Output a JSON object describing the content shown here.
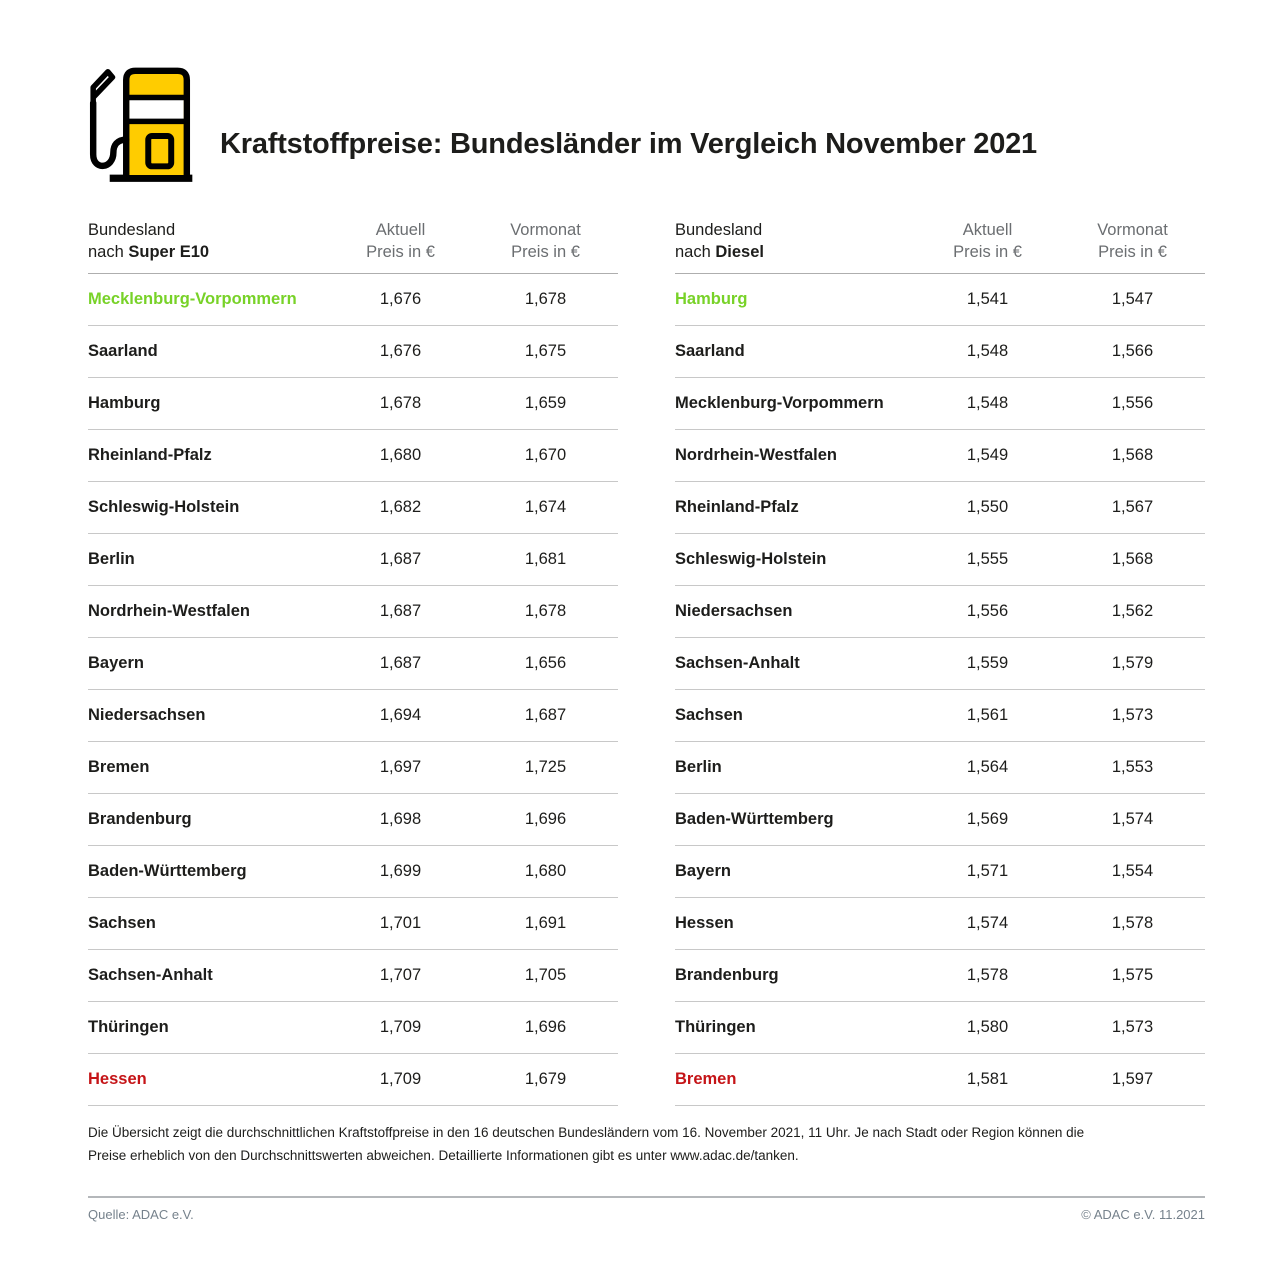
{
  "header": {
    "title": "Kraftstoffpreise: Bundesländer im Vergleich November 2021",
    "icon": "fuel-pump-icon"
  },
  "colors": {
    "brand_yellow": "#FFCC00",
    "cheapest_green": "#78D228",
    "most_expensive_red": "#C51417",
    "column_header_gray": "#6B6E71",
    "text_dark": "#1D1D1B",
    "row_divider": "#C8C8C8",
    "footer_gray": "#76828C"
  },
  "tables": [
    {
      "id": "super-e10",
      "header": {
        "col1_line1": "Bundesland",
        "col1_prefix": "nach ",
        "col1_bold": "Super E10",
        "col2_line1": "Aktuell",
        "col2_line2": "Preis in €",
        "col3_line1": "Vormonat",
        "col3_line2": "Preis in €"
      },
      "rows": [
        {
          "state": "Mecklenburg-Vorpommern",
          "current": "1,676",
          "previous": "1,678",
          "highlight": "green"
        },
        {
          "state": "Saarland",
          "current": "1,676",
          "previous": "1,675"
        },
        {
          "state": "Hamburg",
          "current": "1,678",
          "previous": "1,659"
        },
        {
          "state": "Rheinland-Pfalz",
          "current": "1,680",
          "previous": "1,670"
        },
        {
          "state": "Schleswig-Holstein",
          "current": "1,682",
          "previous": "1,674"
        },
        {
          "state": "Berlin",
          "current": "1,687",
          "previous": "1,681"
        },
        {
          "state": "Nordrhein-Westfalen",
          "current": "1,687",
          "previous": "1,678"
        },
        {
          "state": "Bayern",
          "current": "1,687",
          "previous": "1,656"
        },
        {
          "state": "Niedersachsen",
          "current": "1,694",
          "previous": "1,687"
        },
        {
          "state": "Bremen",
          "current": "1,697",
          "previous": "1,725"
        },
        {
          "state": "Brandenburg",
          "current": "1,698",
          "previous": "1,696"
        },
        {
          "state": "Baden-Württemberg",
          "current": "1,699",
          "previous": "1,680"
        },
        {
          "state": "Sachsen",
          "current": "1,701",
          "previous": "1,691"
        },
        {
          "state": "Sachsen-Anhalt",
          "current": "1,707",
          "previous": "1,705"
        },
        {
          "state": "Thüringen",
          "current": "1,709",
          "previous": "1,696"
        },
        {
          "state": "Hessen",
          "current": "1,709",
          "previous": "1,679",
          "highlight": "red"
        }
      ]
    },
    {
      "id": "diesel",
      "header": {
        "col1_line1": "Bundesland",
        "col1_prefix": "nach ",
        "col1_bold": "Diesel",
        "col2_line1": "Aktuell",
        "col2_line2": "Preis in €",
        "col3_line1": "Vormonat",
        "col3_line2": "Preis in €"
      },
      "rows": [
        {
          "state": "Hamburg",
          "current": "1,541",
          "previous": "1,547",
          "highlight": "green"
        },
        {
          "state": "Saarland",
          "current": "1,548",
          "previous": "1,566"
        },
        {
          "state": "Mecklenburg-Vorpommern",
          "current": "1,548",
          "previous": "1,556"
        },
        {
          "state": "Nordrhein-Westfalen",
          "current": "1,549",
          "previous": "1,568"
        },
        {
          "state": "Rheinland-Pfalz",
          "current": "1,550",
          "previous": "1,567"
        },
        {
          "state": "Schleswig-Holstein",
          "current": "1,555",
          "previous": "1,568"
        },
        {
          "state": "Niedersachsen",
          "current": "1,556",
          "previous": "1,562"
        },
        {
          "state": "Sachsen-Anhalt",
          "current": "1,559",
          "previous": "1,579"
        },
        {
          "state": "Sachsen",
          "current": "1,561",
          "previous": "1,573"
        },
        {
          "state": "Berlin",
          "current": "1,564",
          "previous": "1,553"
        },
        {
          "state": "Baden-Württemberg",
          "current": "1,569",
          "previous": "1,574"
        },
        {
          "state": "Bayern",
          "current": "1,571",
          "previous": "1,554"
        },
        {
          "state": "Hessen",
          "current": "1,574",
          "previous": "1,578"
        },
        {
          "state": "Brandenburg",
          "current": "1,578",
          "previous": "1,575"
        },
        {
          "state": "Thüringen",
          "current": "1,580",
          "previous": "1,573"
        },
        {
          "state": "Bremen",
          "current": "1,581",
          "previous": "1,597",
          "highlight": "red"
        }
      ]
    }
  ],
  "footnote": {
    "text": "Die Übersicht zeigt die durchschnittlichen Kraftstoffpreise in den 16 deutschen Bundesländern vom 16. November 2021, 11 Uhr. Je nach Stadt oder Region können die Preise erheblich von den Durchschnittswerten abweichen. Detaillierte Informationen gibt es unter www.adac.de/tanken."
  },
  "footer": {
    "source": "Quelle: ADAC e.V.",
    "copyright": "© ADAC e.V. 11.2021"
  },
  "chart_data": [
    {
      "type": "table",
      "title": "Bundesland nach Super E10",
      "columns": [
        "Bundesland",
        "Aktuell Preis in €",
        "Vormonat Preis in €"
      ],
      "rows": [
        [
          "Mecklenburg-Vorpommern",
          1.676,
          1.678
        ],
        [
          "Saarland",
          1.676,
          1.675
        ],
        [
          "Hamburg",
          1.678,
          1.659
        ],
        [
          "Rheinland-Pfalz",
          1.68,
          1.67
        ],
        [
          "Schleswig-Holstein",
          1.682,
          1.674
        ],
        [
          "Berlin",
          1.687,
          1.681
        ],
        [
          "Nordrhein-Westfalen",
          1.687,
          1.678
        ],
        [
          "Bayern",
          1.687,
          1.656
        ],
        [
          "Niedersachsen",
          1.694,
          1.687
        ],
        [
          "Bremen",
          1.697,
          1.725
        ],
        [
          "Brandenburg",
          1.698,
          1.696
        ],
        [
          "Baden-Württemberg",
          1.699,
          1.68
        ],
        [
          "Sachsen",
          1.701,
          1.691
        ],
        [
          "Sachsen-Anhalt",
          1.707,
          1.705
        ],
        [
          "Thüringen",
          1.709,
          1.696
        ],
        [
          "Hessen",
          1.709,
          1.679
        ]
      ],
      "annotations": {
        "cheapest_highlight_green": "Mecklenburg-Vorpommern",
        "most_expensive_highlight_red": "Hessen"
      }
    },
    {
      "type": "table",
      "title": "Bundesland nach Diesel",
      "columns": [
        "Bundesland",
        "Aktuell Preis in €",
        "Vormonat Preis in €"
      ],
      "rows": [
        [
          "Hamburg",
          1.541,
          1.547
        ],
        [
          "Saarland",
          1.548,
          1.566
        ],
        [
          "Mecklenburg-Vorpommern",
          1.548,
          1.556
        ],
        [
          "Nordrhein-Westfalen",
          1.549,
          1.568
        ],
        [
          "Rheinland-Pfalz",
          1.55,
          1.567
        ],
        [
          "Schleswig-Holstein",
          1.555,
          1.568
        ],
        [
          "Niedersachsen",
          1.556,
          1.562
        ],
        [
          "Sachsen-Anhalt",
          1.559,
          1.579
        ],
        [
          "Sachsen",
          1.561,
          1.573
        ],
        [
          "Berlin",
          1.564,
          1.553
        ],
        [
          "Baden-Württemberg",
          1.569,
          1.574
        ],
        [
          "Bayern",
          1.571,
          1.554
        ],
        [
          "Hessen",
          1.574,
          1.578
        ],
        [
          "Brandenburg",
          1.578,
          1.575
        ],
        [
          "Thüringen",
          1.58,
          1.573
        ],
        [
          "Bremen",
          1.581,
          1.597
        ]
      ],
      "annotations": {
        "cheapest_highlight_green": "Hamburg",
        "most_expensive_highlight_red": "Bremen"
      }
    }
  ]
}
